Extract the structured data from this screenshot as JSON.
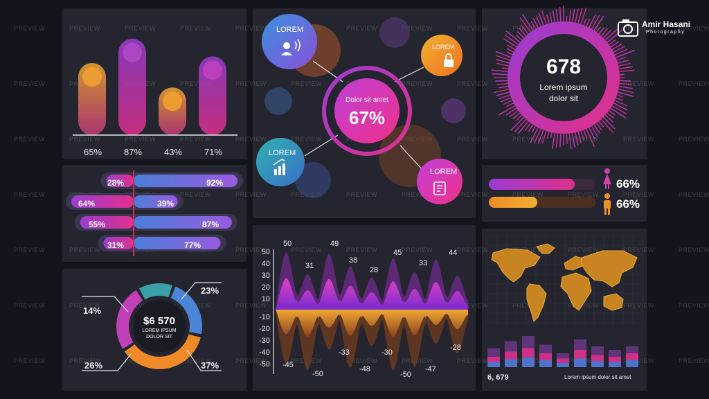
{
  "watermark": "PREVIEW",
  "brand": {
    "name": "Amir Hasani",
    "tagline": "Photography"
  },
  "bar_chart": {
    "labels": [
      "65%",
      "87%",
      "43%",
      "71%"
    ],
    "values": [
      65,
      87,
      43,
      71
    ],
    "colors": [
      "#f0a030",
      "#b048c8",
      "#f0a030",
      "#c040c0"
    ]
  },
  "bubble_diagram": {
    "center_caption": "Dolor sit amet",
    "center_value": "67%",
    "nodes": [
      {
        "label": "LOREM",
        "icon": "person-speaking-icon"
      },
      {
        "label": "LOREM",
        "icon": "lock-icon"
      },
      {
        "label": "LOREM",
        "icon": "bar-chart-up-icon"
      },
      {
        "label": "LOREM",
        "icon": "document-icon"
      }
    ]
  },
  "radial_stat": {
    "value": "678",
    "line1": "Lorem ipsum",
    "line2": "dolor sit"
  },
  "gender_bars": {
    "female": {
      "value": 66,
      "label": "66%",
      "icon": "female-icon"
    },
    "male": {
      "value": 66,
      "label": "66%",
      "icon": "male-icon"
    }
  },
  "butterfly_bars": {
    "rows": [
      {
        "left": "28%",
        "right": "92%"
      },
      {
        "left": "64%",
        "right": "39%"
      },
      {
        "left": "55%",
        "right": "87%"
      },
      {
        "left": "31%",
        "right": "77%"
      }
    ],
    "left_values": [
      28,
      64,
      55,
      31
    ],
    "right_values": [
      92,
      39,
      87,
      77
    ]
  },
  "wave_chart": {
    "y_ticks": [
      "50",
      "40",
      "30",
      "20",
      "10",
      "-10",
      "-20",
      "-30",
      "-40",
      "-50"
    ],
    "top_labels": [
      "50",
      "31",
      "49",
      "38",
      "28",
      "45",
      "33",
      "44"
    ],
    "bottom_labels": [
      "-45",
      "-50",
      "-33",
      "-48",
      "-30",
      "-50",
      "-47",
      "-28"
    ]
  },
  "donut": {
    "center_value": "$6 570",
    "center_line1": "LOREM IPSUM",
    "center_line2": "DOLOR SIT",
    "segments": [
      {
        "label": "23%",
        "value": 23,
        "color": "#4a86d8"
      },
      {
        "label": "37%",
        "value": 37,
        "color": "#f08a28"
      },
      {
        "label": "26%",
        "value": 26,
        "color": "#c040b8"
      },
      {
        "label": "14%",
        "value": 14,
        "color": "#3aa0a8"
      }
    ]
  },
  "map_panel": {
    "footer_value": "6, 679",
    "footer_text": "Lorem ipsum dolor sit amet",
    "mini_bars": [
      {
        "a": 0.55,
        "b": 0.3
      },
      {
        "a": 0.75,
        "b": 0.45
      },
      {
        "a": 0.9,
        "b": 0.55
      },
      {
        "a": 0.65,
        "b": 0.4
      },
      {
        "a": 0.4,
        "b": 0.25
      },
      {
        "a": 0.8,
        "b": 0.5
      },
      {
        "a": 0.6,
        "b": 0.35
      },
      {
        "a": 0.5,
        "b": 0.3
      },
      {
        "a": 0.6,
        "b": 0.4
      }
    ]
  }
}
